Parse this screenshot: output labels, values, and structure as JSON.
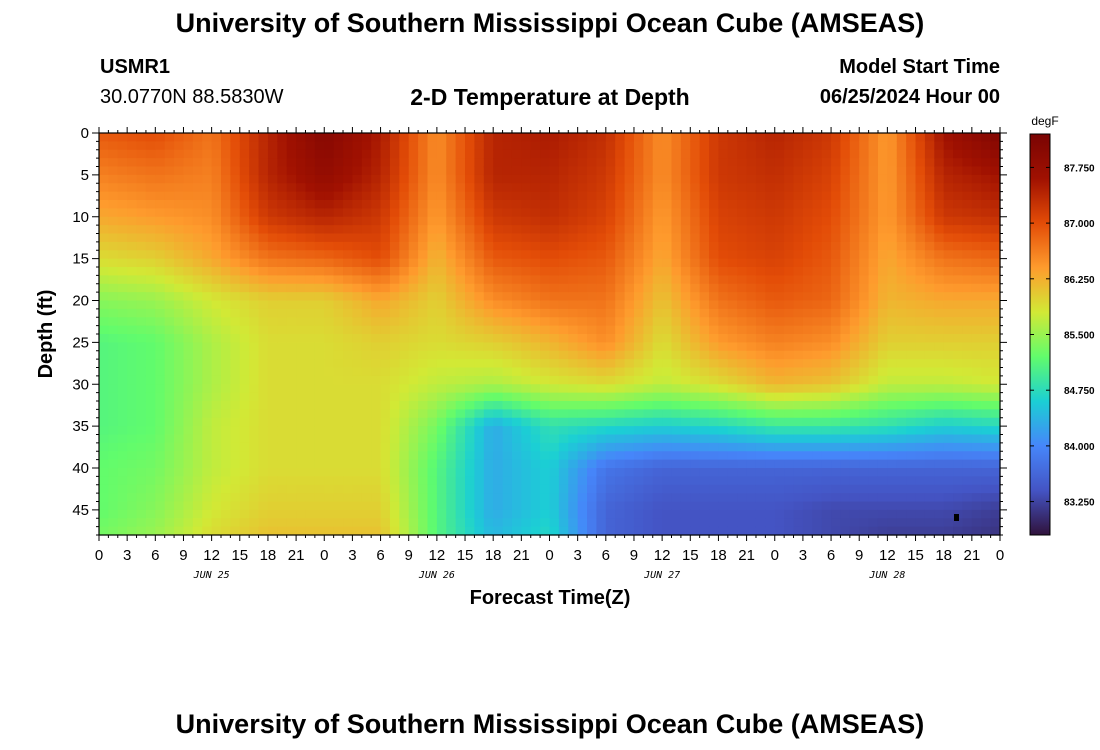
{
  "header": {
    "title": "University of Southern Mississippi Ocean Cube (AMSEAS)",
    "station": "USMR1",
    "coords": "30.0770N  88.5830W",
    "plot_title": "2-D Temperature at Depth",
    "model_start_label": "Model Start Time",
    "model_start_value": "06/25/2024 Hour 00"
  },
  "footer": {
    "title": "University of Southern Mississippi Ocean Cube (AMSEAS)"
  },
  "colorbar": {
    "unit": "degF",
    "min": 82.8,
    "max": 88.2,
    "ticks": [
      "87.750",
      "87.000",
      "86.250",
      "85.500",
      "84.750",
      "84.000",
      "83.250"
    ],
    "tick_values": [
      87.75,
      87.0,
      86.25,
      85.5,
      84.75,
      84.0,
      83.25
    ],
    "colors": [
      "#30123b",
      "#4454c4",
      "#4686fa",
      "#1bcfd4",
      "#61fc6c",
      "#d2e935",
      "#fe9b2d",
      "#e34c07",
      "#a01101",
      "#7a0403"
    ]
  },
  "chart_data": {
    "type": "heatmap",
    "title": "2-D Temperature at Depth",
    "xlabel": "Forecast Time(Z)",
    "ylabel": "Depth (ft)",
    "xlim": [
      0,
      96
    ],
    "ylim": [
      48,
      0
    ],
    "x_tick_hours": [
      0,
      3,
      6,
      9,
      12,
      15,
      18,
      21,
      24,
      27,
      30,
      33,
      36,
      39,
      42,
      45,
      48,
      51,
      54,
      57,
      60,
      63,
      66,
      69,
      72,
      75,
      78,
      81,
      84,
      87,
      90,
      93,
      96
    ],
    "x_tick_labels": [
      "0",
      "3",
      "6",
      "9",
      "12",
      "15",
      "18",
      "21",
      "0",
      "3",
      "6",
      "9",
      "12",
      "15",
      "18",
      "21",
      "0",
      "3",
      "6",
      "9",
      "12",
      "15",
      "18",
      "21",
      "0",
      "3",
      "6",
      "9",
      "12",
      "15",
      "18",
      "21",
      "0"
    ],
    "day_labels": [
      {
        "text": "JUN 25",
        "hour": 12
      },
      {
        "text": "JUN 26",
        "hour": 36
      },
      {
        "text": "JUN 27",
        "hour": 60
      },
      {
        "text": "JUN 28",
        "hour": 84
      }
    ],
    "y_ticks": [
      0,
      5,
      10,
      15,
      20,
      25,
      30,
      35,
      40,
      45
    ],
    "y_tick_labels": [
      "0",
      "5",
      "10",
      "15",
      "20",
      "25",
      "30",
      "35",
      "40",
      "45"
    ],
    "value_unit": "degF",
    "time_hours": [
      0,
      6,
      12,
      18,
      24,
      30,
      36,
      42,
      48,
      54,
      60,
      66,
      72,
      78,
      84,
      90,
      96
    ],
    "depth_ft": [
      0,
      5,
      10,
      15,
      20,
      25,
      30,
      35,
      40,
      45,
      48
    ],
    "values": [
      [
        86.9,
        86.6,
        86.3,
        85.9,
        85.4,
        85.1,
        85.1,
        85.1,
        85.2,
        85.2,
        85.3
      ],
      [
        87.0,
        86.7,
        86.4,
        86.0,
        85.5,
        85.2,
        85.2,
        85.2,
        85.3,
        85.4,
        85.5
      ],
      [
        86.7,
        86.6,
        86.5,
        86.3,
        85.8,
        85.6,
        85.6,
        85.7,
        85.7,
        85.8,
        85.9
      ],
      [
        87.4,
        87.4,
        87.2,
        86.7,
        86.0,
        85.9,
        85.9,
        85.9,
        85.9,
        86.0,
        86.1
      ],
      [
        88.0,
        87.8,
        87.4,
        86.8,
        86.0,
        85.9,
        85.9,
        85.9,
        85.9,
        86.0,
        86.1
      ],
      [
        87.5,
        87.4,
        87.2,
        87.0,
        86.3,
        86.0,
        85.9,
        85.9,
        85.9,
        86.0,
        86.1
      ],
      [
        86.5,
        86.5,
        86.4,
        86.2,
        86.0,
        85.9,
        85.7,
        85.3,
        85.1,
        85.1,
        85.1
      ],
      [
        87.4,
        87.4,
        87.2,
        86.9,
        86.5,
        86.0,
        85.6,
        84.3,
        84.3,
        84.3,
        84.4
      ],
      [
        87.5,
        87.4,
        87.3,
        87.0,
        86.7,
        86.2,
        85.8,
        84.8,
        84.6,
        84.6,
        84.7
      ],
      [
        87.3,
        87.2,
        87.1,
        86.9,
        86.7,
        86.5,
        85.9,
        84.7,
        83.8,
        83.6,
        83.6
      ],
      [
        86.5,
        86.5,
        86.4,
        86.3,
        86.1,
        85.9,
        85.7,
        84.6,
        83.6,
        83.4,
        83.4
      ],
      [
        87.2,
        87.2,
        87.1,
        87.0,
        86.7,
        86.4,
        85.9,
        84.7,
        83.6,
        83.4,
        83.4
      ],
      [
        87.4,
        87.3,
        87.2,
        87.1,
        86.9,
        86.6,
        86.2,
        84.9,
        83.6,
        83.4,
        83.4
      ],
      [
        87.2,
        87.1,
        87.0,
        86.9,
        86.8,
        86.5,
        86.1,
        84.9,
        83.6,
        83.3,
        83.3
      ],
      [
        86.4,
        86.4,
        86.4,
        86.3,
        86.2,
        86.0,
        85.7,
        84.8,
        83.6,
        83.3,
        83.2
      ],
      [
        87.6,
        87.4,
        87.2,
        86.7,
        86.3,
        86.0,
        85.7,
        84.6,
        83.6,
        83.3,
        83.2
      ],
      [
        88.1,
        87.6,
        87.3,
        86.8,
        86.3,
        86.0,
        85.8,
        84.7,
        83.6,
        83.2,
        83.1
      ]
    ]
  }
}
